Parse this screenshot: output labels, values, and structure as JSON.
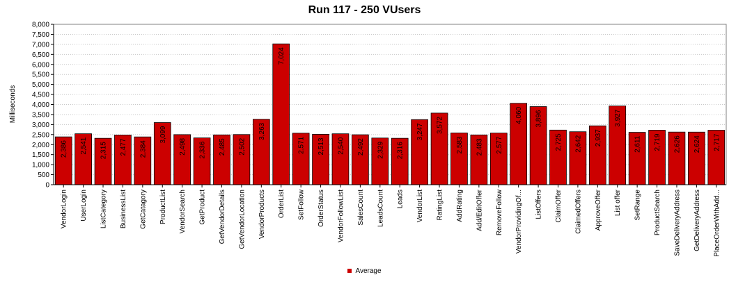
{
  "chart_data": {
    "type": "bar",
    "title": "Run 117 - 250 VUsers",
    "ylabel": "Milliseconds",
    "xlabel": "",
    "ylim": [
      0,
      8000
    ],
    "ytick_step": 500,
    "ytick_labels": [
      "0",
      "500",
      "1,000",
      "1,500",
      "2,000",
      "2,500",
      "3,000",
      "3,500",
      "4,000",
      "4,500",
      "5,000",
      "5,500",
      "6,000",
      "6,500",
      "7,000",
      "7,500",
      "8,000"
    ],
    "grid": true,
    "legend": "bottom-center",
    "bar_color": "#cc0000",
    "categories": [
      "VendorLogin",
      "UserLogin",
      "ListCategory",
      "BusinessList",
      "GetCatagory",
      "ProductList",
      "VendorSearch",
      "GetProduct",
      "GetVendorDetails",
      "GetVendorLocation",
      "VendorProducts",
      "OrderList",
      "SetFollow",
      "OrderStatus",
      "VendorFollowList",
      "SalesCount",
      "LeadsCount",
      "Leads",
      "VendorList",
      "RatingList",
      "AddRating",
      "Add/EditOffer",
      "RemoveFollow",
      "VendorProvidingOf...",
      "ListOffers",
      "ClaimOffer",
      "ClaimedOffers",
      "ApproveOffer",
      "List offer",
      "SetRange",
      "ProductSearch",
      "SaveDeliveryAddress",
      "GetDeliveryAddress",
      "PlaceOrderWithAdd..."
    ],
    "series": [
      {
        "name": "Average",
        "values": [
          2386,
          2541,
          2315,
          2477,
          2384,
          3099,
          2498,
          2336,
          2485,
          2502,
          3263,
          7024,
          2571,
          2513,
          2540,
          2492,
          2329,
          2316,
          3247,
          3572,
          2583,
          2483,
          2577,
          4060,
          3896,
          2725,
          2642,
          2937,
          3927,
          2611,
          2719,
          2626,
          2624,
          2717
        ],
        "labels": [
          "2,386",
          "2,541",
          "2,315",
          "2,477",
          "2,384",
          "3,099",
          "2,498",
          "2,336",
          "2,485",
          "2,502",
          "3,263",
          "7,024",
          "2,571",
          "2,513",
          "2,540",
          "2,492",
          "2,329",
          "2,316",
          "3,247",
          "3,572",
          "2,583",
          "2,483",
          "2,577",
          "4,060",
          "3,896",
          "2,725",
          "2,642",
          "2,937",
          "3,927",
          "2,611",
          "2,719",
          "2,626",
          "2,624",
          "2,717"
        ]
      }
    ]
  }
}
